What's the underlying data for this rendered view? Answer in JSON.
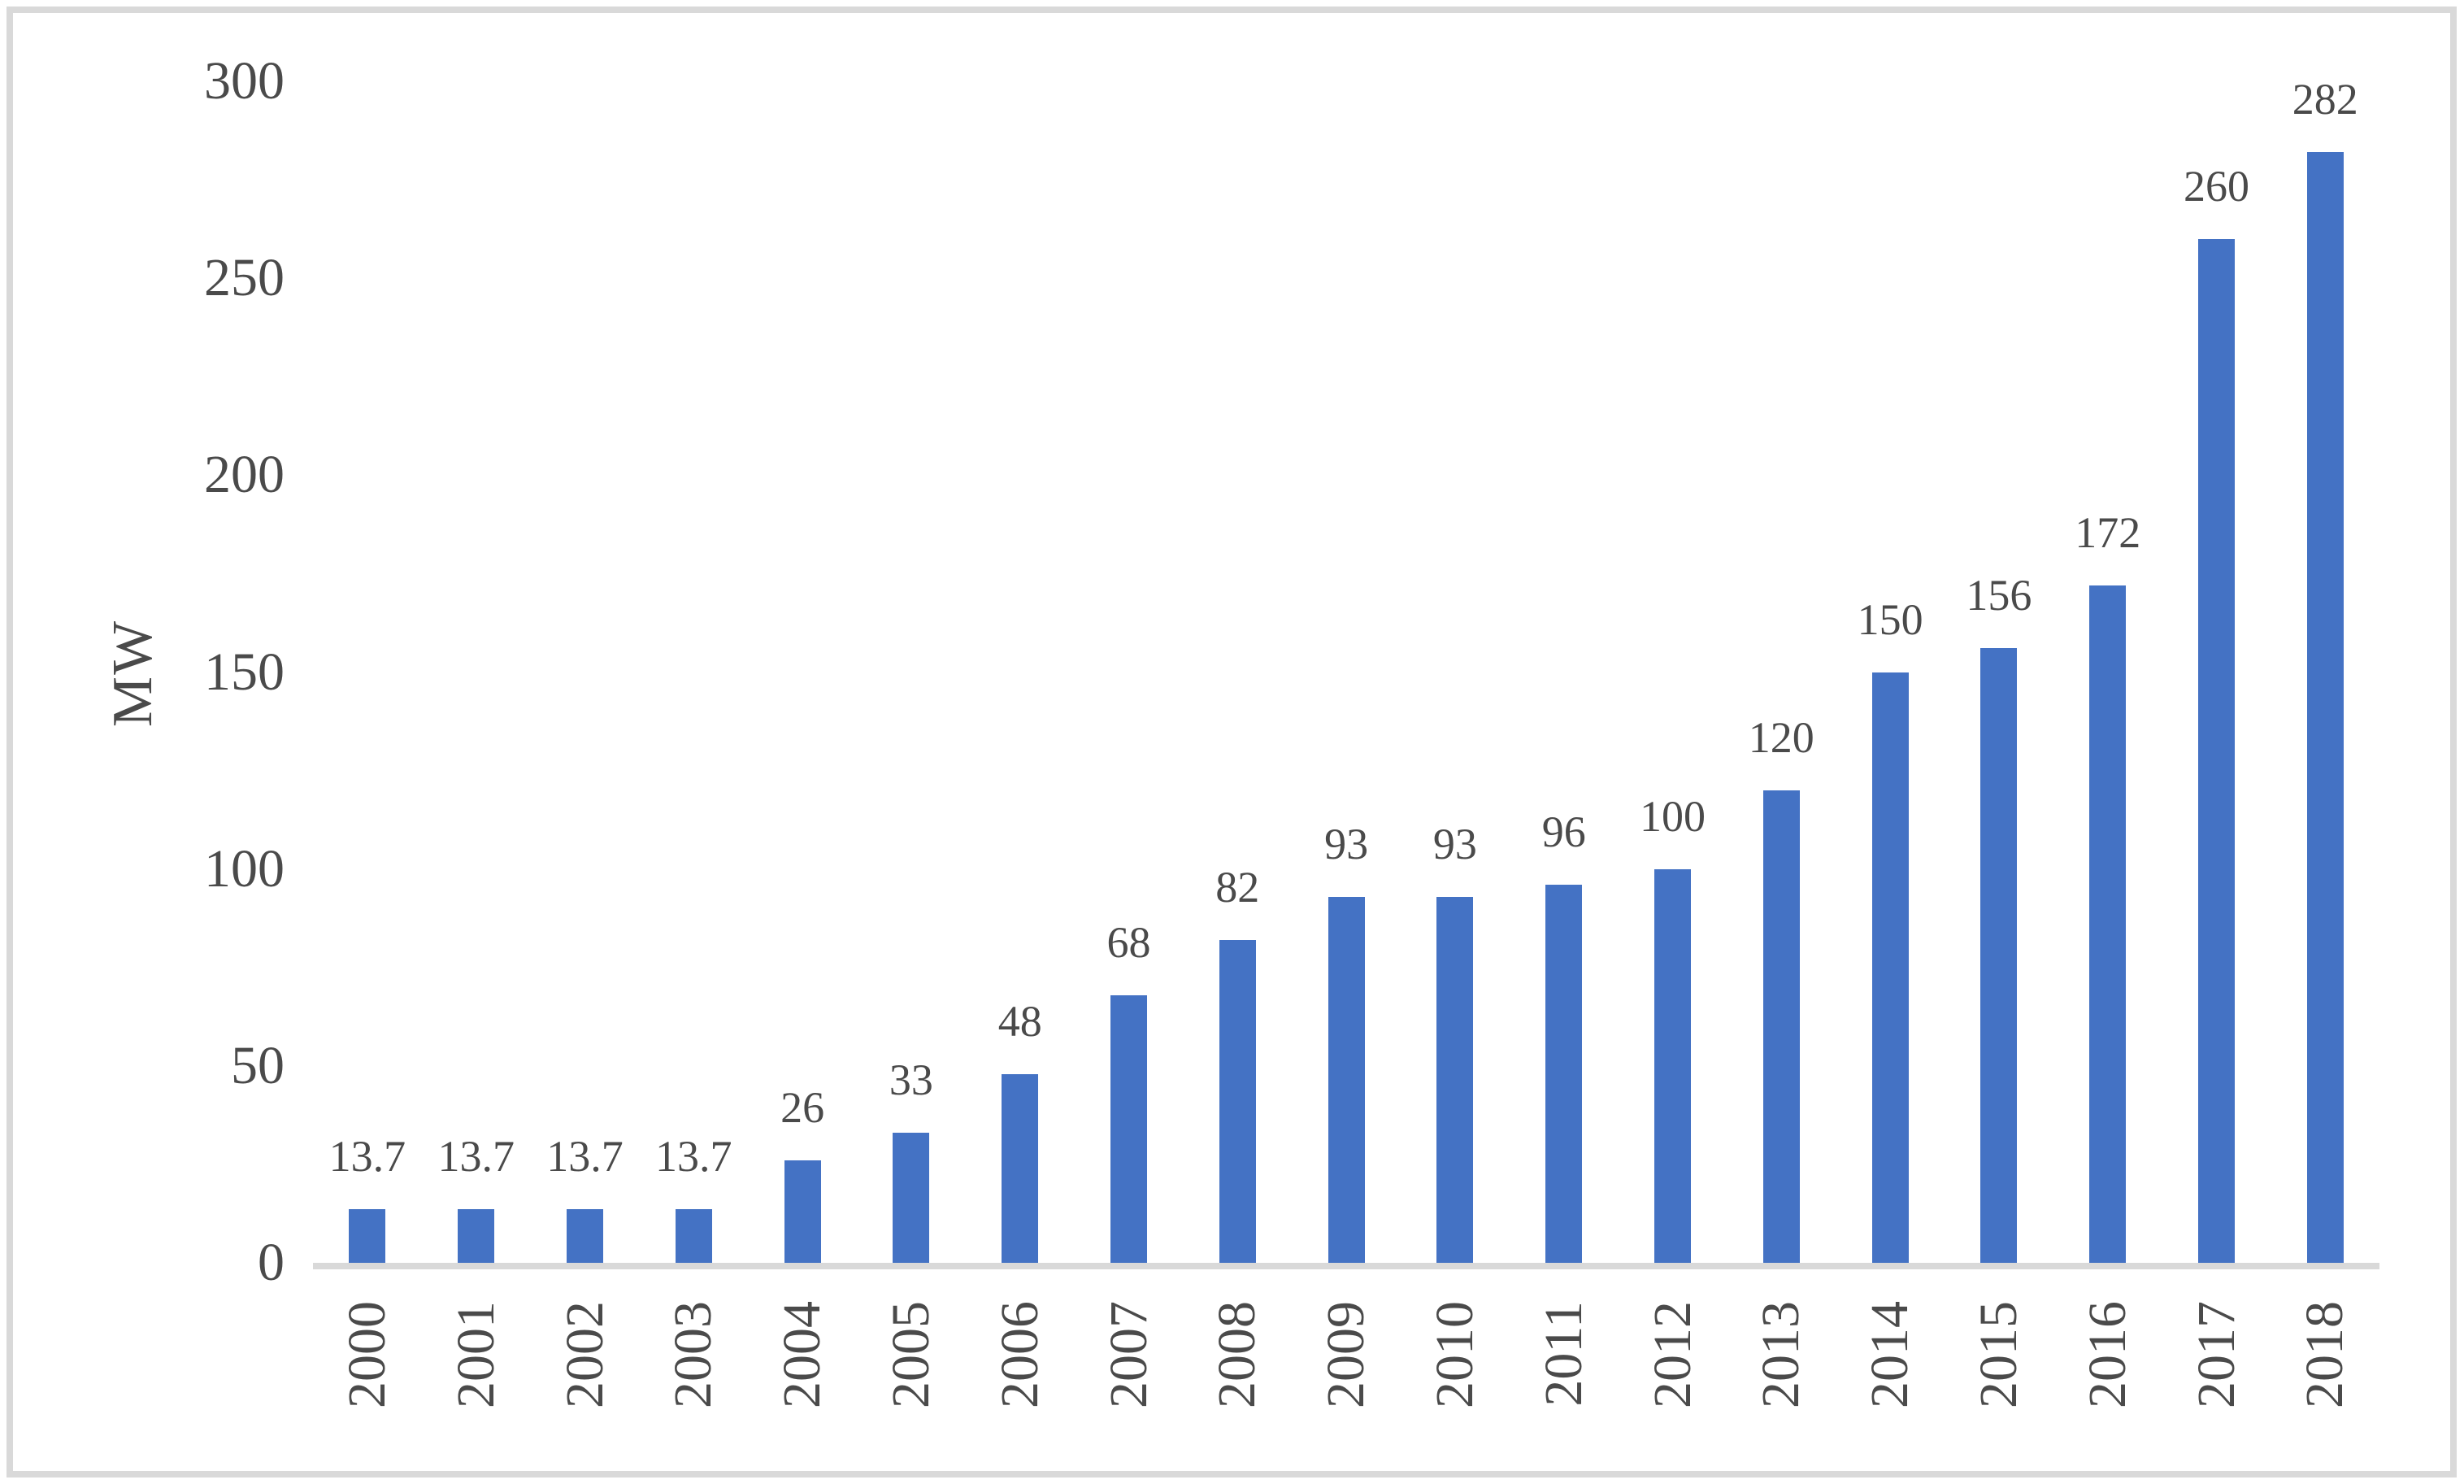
{
  "chart_data": {
    "type": "bar",
    "title": "",
    "xlabel": "",
    "ylabel": "MW",
    "categories": [
      "2000",
      "2001",
      "2002",
      "2003",
      "2004",
      "2005",
      "2006",
      "2007",
      "2008",
      "2009",
      "2010",
      "2011",
      "2012",
      "2013",
      "2014",
      "2015",
      "2016",
      "2017",
      "2018"
    ],
    "values": [
      13.7,
      13.7,
      13.7,
      13.7,
      26,
      33,
      48,
      68,
      82,
      93,
      93,
      96,
      100,
      120,
      150,
      156,
      172,
      260,
      282
    ],
    "data_labels": [
      "13.7",
      "13.7",
      "13.7",
      "13.7",
      "26",
      "33",
      "48",
      "68",
      "82",
      "93",
      "93",
      "96",
      "100",
      "120",
      "150",
      "156",
      "172",
      "260",
      "282"
    ],
    "y_ticks": [
      0,
      50,
      100,
      150,
      200,
      250,
      300
    ],
    "ylim": [
      0,
      300
    ],
    "grid": false,
    "legend": "none",
    "bar_color": "#4472C4",
    "text_color": "#4a4a4a",
    "axis_line_color": "#D9D9D9",
    "frame_border_color": "#D9D9D9"
  }
}
